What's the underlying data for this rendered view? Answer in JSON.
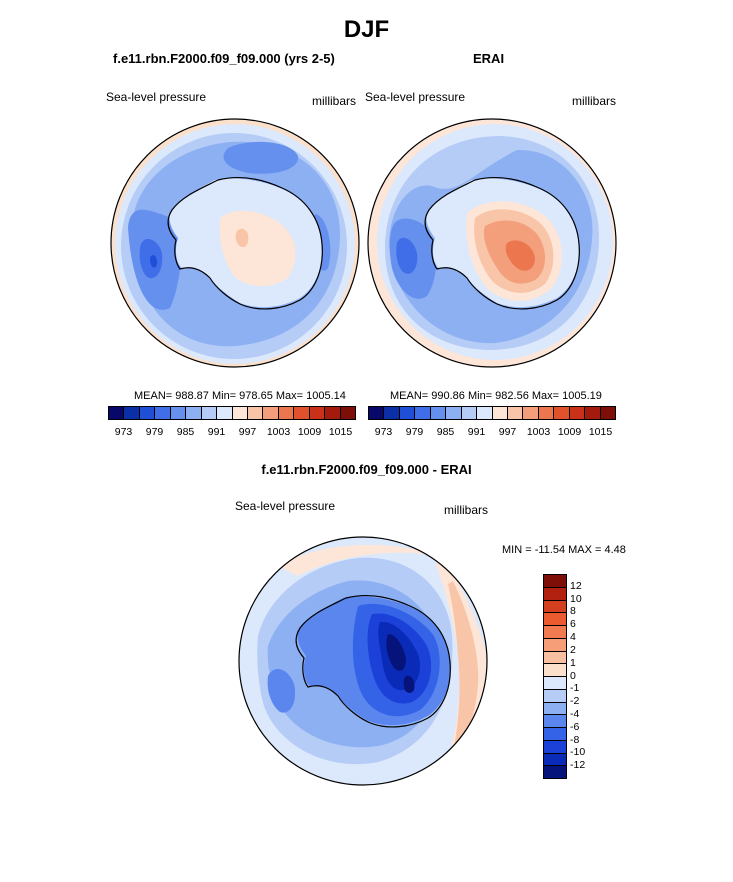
{
  "figure": {
    "title": "DJF",
    "panels": [
      {
        "title": "f.e11.rbn.F2000.f09_f09.000 (yrs 2-5)",
        "left_label": "Sea-level pressure",
        "right_label": "millibars",
        "stats": "MEAN= 988.87  Min= 978.65  Max= 1005.14"
      },
      {
        "title": "ERAI",
        "left_label": "Sea-level pressure",
        "right_label": "millibars",
        "stats": "MEAN= 990.86  Min= 982.56  Max= 1005.19"
      },
      {
        "title": "f.e11.rbn.F2000.f09_f09.000 - ERAI",
        "left_label": "Sea-level pressure",
        "right_label": "millibars",
        "stats": "MIN = -11.54 MAX =  4.48"
      }
    ]
  },
  "chart_data": [
    {
      "type": "heatmap",
      "title": "f.e11.rbn.F2000.f09_f09.000 (yrs 2-5)",
      "variable": "Sea-level pressure",
      "units": "millibars",
      "projection": "south polar stereographic",
      "mean": 988.87,
      "min": 978.65,
      "max": 1005.14,
      "levels": [
        973,
        976,
        979,
        982,
        985,
        988,
        991,
        994,
        997,
        1000,
        1003,
        1006,
        1009,
        1012,
        1015
      ],
      "colorbar_ticks": [
        "973",
        "979",
        "985",
        "991",
        "997",
        "1003",
        "1009",
        "1015"
      ],
      "colors": [
        "#08086b",
        "#0b2fa6",
        "#1f4fd6",
        "#3f6ee8",
        "#6590ee",
        "#8db0f3",
        "#b5ccf7",
        "#dce8fb",
        "#fde6d8",
        "#f9c5a9",
        "#f49f7b",
        "#ec774f",
        "#e0512c",
        "#c93218",
        "#a41a0d",
        "#7d0e08"
      ]
    },
    {
      "type": "heatmap",
      "title": "ERAI",
      "variable": "Sea-level pressure",
      "units": "millibars",
      "projection": "south polar stereographic",
      "mean": 990.86,
      "min": 982.56,
      "max": 1005.19,
      "levels": [
        973,
        976,
        979,
        982,
        985,
        988,
        991,
        994,
        997,
        1000,
        1003,
        1006,
        1009,
        1012,
        1015
      ],
      "colorbar_ticks": [
        "973",
        "979",
        "985",
        "991",
        "997",
        "1003",
        "1009",
        "1015"
      ],
      "colors": [
        "#08086b",
        "#0b2fa6",
        "#1f4fd6",
        "#3f6ee8",
        "#6590ee",
        "#8db0f3",
        "#b5ccf7",
        "#dce8fb",
        "#fde6d8",
        "#f9c5a9",
        "#f49f7b",
        "#ec774f",
        "#e0512c",
        "#c93218",
        "#a41a0d",
        "#7d0e08"
      ]
    },
    {
      "type": "heatmap",
      "title": "f.e11.rbn.F2000.f09_f09.000 - ERAI",
      "variable": "Sea-level pressure",
      "units": "millibars",
      "projection": "south polar stereographic",
      "min": -11.54,
      "max": 4.48,
      "levels": [
        -12,
        -10,
        -8,
        -6,
        -4,
        -2,
        -1,
        0,
        1,
        2,
        4,
        6,
        8,
        10,
        12
      ],
      "colorbar_ticks": [
        "12",
        "10",
        "8",
        "6",
        "4",
        "2",
        "1",
        "0",
        "-1",
        "-2",
        "-4",
        "-6",
        "-8",
        "-10",
        "-12"
      ],
      "colors_top_to_bottom": [
        "#7d0e08",
        "#b2200f",
        "#d2401f",
        "#ec5a30",
        "#f27a50",
        "#f59e77",
        "#f8c0a0",
        "#fbe0cc",
        "#dce8fb",
        "#b5ccf7",
        "#8db0f3",
        "#5a86ee",
        "#3563e8",
        "#1b41d8",
        "#0a2ab8",
        "#06137a"
      ]
    }
  ]
}
